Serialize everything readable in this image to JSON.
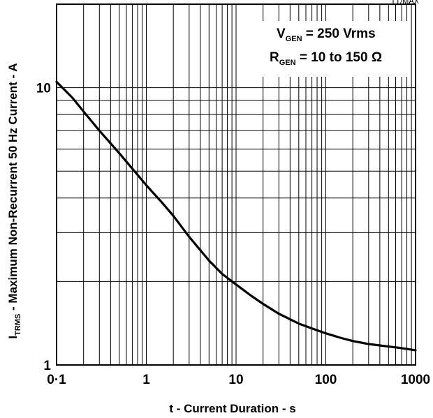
{
  "figure_tag": "TT/MAX",
  "chart_data": {
    "type": "line",
    "xlabel": "t - Current Duration - s",
    "ylabel": {
      "prefix": "I",
      "prefix_sub": "TRMS",
      "text": " - Maximum Non-Recurrent 50 Hz Current - A"
    },
    "x_scale": "log",
    "y_scale": "log",
    "xlim": [
      0.1,
      1000
    ],
    "ylim": [
      1,
      20
    ],
    "grid": true,
    "x_ticks": [
      {
        "value": 0.1,
        "label": "0·1"
      },
      {
        "value": 1,
        "label": "1"
      },
      {
        "value": 10,
        "label": "10"
      },
      {
        "value": 100,
        "label": "100"
      },
      {
        "value": 1000,
        "label": "1000"
      }
    ],
    "y_ticks": [
      {
        "value": 1,
        "label": "1"
      },
      {
        "value": 10,
        "label": "10"
      }
    ],
    "annotations": [
      {
        "main": "V",
        "sub": "GEN",
        "rest": " = 250 Vrms"
      },
      {
        "main": "R",
        "sub": "GEN",
        "rest": " = 10 to 150 Ω"
      }
    ],
    "series": [
      {
        "x": [
          0.1,
          0.15,
          0.2,
          0.3,
          0.5,
          0.7,
          1,
          1.5,
          2,
          3,
          5,
          7,
          10,
          15,
          20,
          30,
          50,
          70,
          100,
          150,
          200,
          300,
          500,
          700,
          1000
        ],
        "y": [
          10.5,
          9.2,
          8.2,
          7.0,
          5.8,
          5.1,
          4.45,
          3.85,
          3.45,
          2.9,
          2.38,
          2.13,
          1.95,
          1.77,
          1.66,
          1.53,
          1.41,
          1.355,
          1.3,
          1.25,
          1.22,
          1.19,
          1.165,
          1.15,
          1.13
        ]
      }
    ]
  }
}
